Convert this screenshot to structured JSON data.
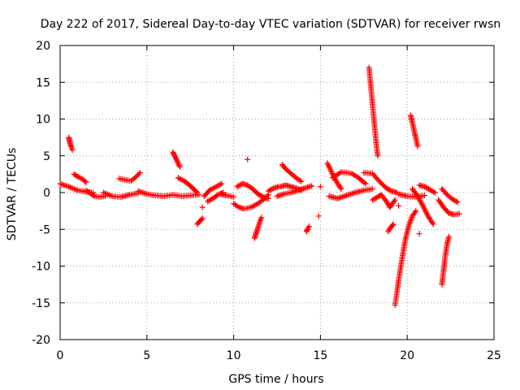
{
  "chart_data": {
    "type": "scatter",
    "title": "Day 222 of 2017, Sidereal Day-to-day VTEC variation (SDTVAR) for receiver rwsn",
    "xlabel": "GPS time / hours",
    "ylabel": "SDTVAR / TECUs",
    "xlim": [
      0,
      25
    ],
    "ylim": [
      -20,
      20
    ],
    "xticks": [
      0,
      5,
      10,
      15,
      20,
      25
    ],
    "yticks": [
      20,
      15,
      10,
      5,
      0,
      -5,
      -10,
      -15,
      -20
    ],
    "grid": true,
    "marker": "+",
    "marker_color": "#ff0000",
    "segments": [
      {
        "x": [
          0.0,
          0.5,
          1.0,
          1.5,
          1.9
        ],
        "y": [
          1.2,
          0.8,
          0.3,
          0.1,
          0.0
        ]
      },
      {
        "x": [
          0.5,
          0.55,
          0.6,
          0.65,
          0.7
        ],
        "y": [
          7.5,
          7.0,
          6.5,
          6.2,
          5.8
        ]
      },
      {
        "x": [
          0.8,
          1.0,
          1.3,
          1.5
        ],
        "y": [
          2.5,
          2.2,
          1.8,
          1.4
        ]
      },
      {
        "x": [
          1.5,
          1.8,
          2.0,
          2.3,
          2.6
        ],
        "y": [
          0.3,
          -0.2,
          -0.5,
          -0.6,
          -0.5
        ]
      },
      {
        "x": [
          2.5,
          3.0,
          3.5,
          4.0,
          4.5
        ],
        "y": [
          0.0,
          -0.5,
          -0.6,
          -0.3,
          -0.1
        ]
      },
      {
        "x": [
          3.4,
          3.8,
          4.1,
          4.4,
          4.6
        ],
        "y": [
          1.9,
          1.7,
          1.6,
          2.2,
          2.7
        ]
      },
      {
        "x": [
          4.5,
          5.0,
          5.5,
          6.0,
          6.5,
          7.0,
          7.5,
          8.0
        ],
        "y": [
          0.2,
          -0.2,
          -0.4,
          -0.5,
          -0.3,
          -0.5,
          -0.4,
          -0.3
        ]
      },
      {
        "x": [
          6.5,
          6.6,
          6.7,
          6.8,
          6.9
        ],
        "y": [
          5.5,
          5.0,
          4.5,
          4.0,
          3.5
        ]
      },
      {
        "x": [
          6.8,
          7.2,
          7.6,
          7.9
        ],
        "y": [
          2.0,
          1.5,
          0.7,
          0.0
        ]
      },
      {
        "x": [
          7.9,
          8.0,
          8.1,
          8.2
        ],
        "y": [
          -4.3,
          -4.0,
          -3.8,
          -3.5
        ]
      },
      {
        "x": [
          8.3,
          8.6,
          9.0,
          9.3
        ],
        "y": [
          -0.5,
          0.3,
          0.8,
          1.2
        ]
      },
      {
        "x": [
          8.5,
          8.8,
          9.1,
          9.4
        ],
        "y": [
          -1.2,
          -0.8,
          -0.3,
          0.0
        ]
      },
      {
        "x": [
          9.3,
          9.6,
          10.0
        ],
        "y": [
          -0.2,
          -0.4,
          -0.6
        ]
      },
      {
        "x": [
          10.0,
          10.3,
          10.6,
          11.0,
          11.4,
          11.8,
          12.0
        ],
        "y": [
          -1.5,
          -2.0,
          -2.2,
          -2.0,
          -1.5,
          -0.8,
          -0.3
        ]
      },
      {
        "x": [
          10.2,
          10.5,
          10.8,
          11.1,
          11.4,
          11.7,
          12.0
        ],
        "y": [
          0.8,
          1.2,
          1.0,
          0.5,
          -0.2,
          -0.6,
          -0.8
        ]
      },
      {
        "x": [
          11.2,
          11.3,
          11.4,
          11.5,
          11.6
        ],
        "y": [
          -6.2,
          -5.5,
          -4.8,
          -4.0,
          -3.4
        ]
      },
      {
        "x": [
          12.0,
          12.3,
          12.6
        ],
        "y": [
          0.2,
          0.6,
          0.8
        ]
      },
      {
        "x": [
          12.7,
          13.0,
          13.3,
          13.6,
          13.9
        ],
        "y": [
          0.8,
          1.0,
          0.8,
          0.6,
          0.3
        ]
      },
      {
        "x": [
          12.5,
          12.9,
          13.3,
          13.7,
          14.1,
          14.5
        ],
        "y": [
          -0.5,
          -0.2,
          0.0,
          0.3,
          0.6,
          0.9
        ]
      },
      {
        "x": [
          12.8,
          13.0,
          13.3,
          13.6,
          13.9
        ],
        "y": [
          3.8,
          3.2,
          2.6,
          2.0,
          1.5
        ]
      },
      {
        "x": [
          14.2,
          14.25,
          14.3,
          14.35
        ],
        "y": [
          -5.3,
          -5.0,
          -4.8,
          -4.6
        ]
      },
      {
        "x": [
          15.4,
          15.6,
          15.8,
          16.0,
          16.2
        ],
        "y": [
          4.0,
          3.0,
          2.0,
          1.2,
          0.5
        ]
      },
      {
        "x": [
          15.7,
          16.2,
          16.8,
          17.2,
          17.6
        ],
        "y": [
          2.0,
          2.8,
          2.6,
          2.0,
          1.2
        ]
      },
      {
        "x": [
          15.5,
          16.0,
          16.5,
          17.0,
          17.5,
          18.0
        ],
        "y": [
          -0.5,
          -0.8,
          -0.4,
          0.0,
          0.3,
          0.5
        ]
      },
      {
        "x": [
          17.8,
          17.9,
          18.0,
          18.1,
          18.2,
          18.3
        ],
        "y": [
          17.0,
          14.5,
          12.0,
          9.5,
          7.0,
          5.0
        ]
      },
      {
        "x": [
          17.5,
          18.0,
          18.4,
          18.8,
          19.1,
          19.4
        ],
        "y": [
          2.7,
          2.6,
          1.5,
          0.6,
          0.2,
          0.0
        ]
      },
      {
        "x": [
          18.0,
          18.3,
          18.5,
          18.8,
          19.0,
          19.3
        ],
        "y": [
          -1.0,
          -0.6,
          -0.3,
          -1.2,
          -2.0,
          -1.0
        ]
      },
      {
        "x": [
          18.9,
          19.0,
          19.1,
          19.2
        ],
        "y": [
          -5.3,
          -4.9,
          -4.6,
          -4.3
        ]
      },
      {
        "x": [
          19.3,
          19.5,
          19.7,
          19.9,
          20.1,
          20.3,
          20.5
        ],
        "y": [
          -15.3,
          -12.0,
          -9.0,
          -6.3,
          -4.4,
          -3.2,
          -2.5
        ]
      },
      {
        "x": [
          19.5,
          20.0,
          20.5,
          21.0
        ],
        "y": [
          -0.2,
          -0.5,
          -0.6,
          -0.4
        ]
      },
      {
        "x": [
          20.2,
          20.3,
          20.4,
          20.5,
          20.6
        ],
        "y": [
          10.5,
          9.5,
          8.4,
          7.4,
          6.3
        ]
      },
      {
        "x": [
          20.3,
          20.6,
          20.9,
          21.2,
          21.5
        ],
        "y": [
          0.5,
          -0.5,
          -1.8,
          -3.2,
          -4.3
        ]
      },
      {
        "x": [
          20.7,
          21.0,
          21.3,
          21.6
        ],
        "y": [
          1.0,
          0.8,
          0.4,
          0.0
        ]
      },
      {
        "x": [
          22.0,
          22.1,
          22.2,
          22.3,
          22.4
        ],
        "y": [
          -12.5,
          -10.5,
          -8.5,
          -7.0,
          -6.0
        ]
      },
      {
        "x": [
          21.8,
          22.1,
          22.4,
          22.7,
          23.0
        ],
        "y": [
          -1.0,
          -2.0,
          -2.8,
          -3.0,
          -2.9
        ]
      },
      {
        "x": [
          22.0,
          22.3,
          22.6,
          22.9
        ],
        "y": [
          0.5,
          -0.3,
          -0.9,
          -1.3
        ]
      }
    ],
    "isolated_points": [
      {
        "x": 10.8,
        "y": 4.5
      },
      {
        "x": 14.9,
        "y": -3.2
      },
      {
        "x": 15.0,
        "y": 0.8
      },
      {
        "x": 20.7,
        "y": -5.6
      },
      {
        "x": 8.2,
        "y": -2.0
      },
      {
        "x": 19.5,
        "y": -1.8
      }
    ]
  }
}
